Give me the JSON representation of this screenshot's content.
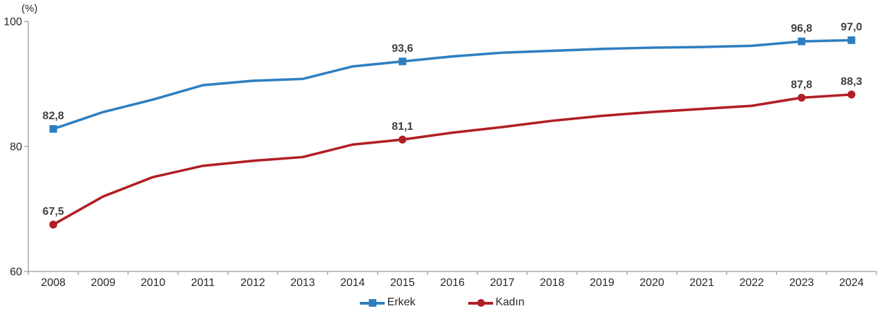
{
  "chart_data": {
    "type": "line",
    "unit_label": "(%)",
    "categories": [
      "2008",
      "2009",
      "2010",
      "2011",
      "2012",
      "2013",
      "2014",
      "2015",
      "2016",
      "2017",
      "2018",
      "2019",
      "2020",
      "2021",
      "2022",
      "2023",
      "2024"
    ],
    "ylim": [
      60,
      100
    ],
    "yticks": [
      {
        "value": 100,
        "label": "100"
      },
      {
        "value": 80,
        "label": "80"
      },
      {
        "value": 60,
        "label": "60"
      }
    ],
    "grid": false,
    "legend_position": "bottom",
    "series": [
      {
        "name": "Erkek",
        "color": "#2E7FC1",
        "marker": "square",
        "values": [
          82.8,
          85.5,
          87.5,
          89.8,
          90.5,
          90.8,
          92.8,
          93.6,
          94.4,
          95.0,
          95.3,
          95.6,
          95.8,
          95.9,
          96.1,
          96.8,
          97.0
        ],
        "point_labels": [
          "82,8",
          null,
          null,
          null,
          null,
          null,
          null,
          "93,6",
          null,
          null,
          null,
          null,
          null,
          null,
          null,
          "96,8",
          "97,0"
        ]
      },
      {
        "name": "Kadın",
        "color": "#B01F24",
        "marker": "circle",
        "values": [
          67.5,
          72.0,
          75.1,
          76.9,
          77.7,
          78.3,
          80.3,
          81.1,
          82.2,
          83.1,
          84.1,
          84.9,
          85.5,
          86.0,
          86.5,
          87.8,
          88.3
        ],
        "point_labels": [
          "67,5",
          null,
          null,
          null,
          null,
          null,
          null,
          "81,1",
          null,
          null,
          null,
          null,
          null,
          null,
          null,
          "87,8",
          "88,3"
        ]
      }
    ],
    "legend": [
      {
        "label": "Erkek",
        "color": "#2E7FC1",
        "marker": "square"
      },
      {
        "label": "Kadın",
        "color": "#B01F24",
        "marker": "circle"
      }
    ]
  },
  "colors": {
    "axis": "#9E9E9E",
    "tick_text": "#262626",
    "data_label_text": "#3F3F3F"
  }
}
